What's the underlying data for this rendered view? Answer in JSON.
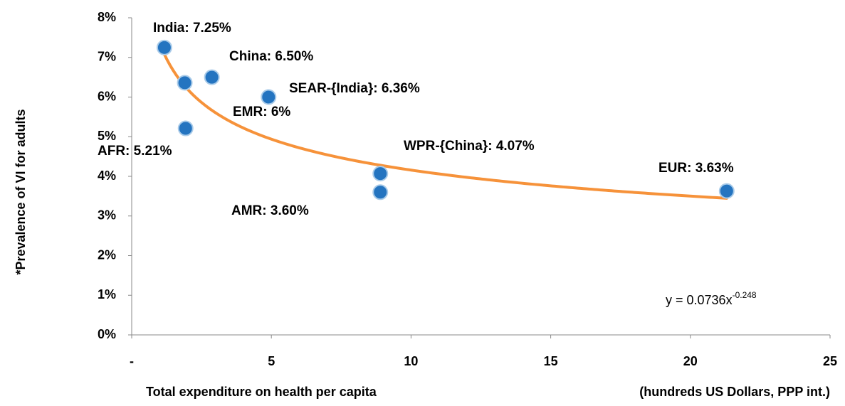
{
  "chart_data": {
    "type": "scatter",
    "ylabel": "*Prevalence of  VI  for adults",
    "xlabel": "Total expenditure on health per capita",
    "xlabel_units": "(hundreds US Dollars, PPP int.)",
    "x": [
      1.17,
      1.9,
      2.87,
      4.9,
      1.93,
      8.9,
      8.9,
      21.3
    ],
    "values": [
      7.25,
      6.36,
      6.5,
      6.0,
      5.21,
      4.07,
      3.6,
      3.63
    ],
    "color": "#2474c0",
    "annotations": [
      {
        "text": "India: 7.25%"
      },
      {
        "text": "China:  6.50%"
      },
      {
        "text": "SEAR-{India}: 6.36%"
      },
      {
        "text": "EMR: 6%"
      },
      {
        "text": "AFR: 5.21%"
      },
      {
        "text": "WPR-{China}: 4.07%"
      },
      {
        "text": "AMR: 3.60%"
      },
      {
        "text": "EUR: 3.63%"
      }
    ],
    "trendline": {
      "type": "power",
      "coefficient": 7.36,
      "exponent": -0.248,
      "color": "#f6923a",
      "equation": "y = 0.0736x",
      "equation_exponent": "-0.248"
    },
    "xlim": [
      0,
      25
    ],
    "xticks": [
      {
        "value": 0,
        "label": "-"
      },
      5,
      10,
      15,
      20,
      25
    ],
    "ylim": [
      0,
      8
    ],
    "yticks": [
      {
        "value": 0,
        "label": "0%"
      },
      {
        "value": 1,
        "label": "1%"
      },
      {
        "value": 2,
        "label": "2%"
      },
      {
        "value": 3,
        "label": "3%"
      },
      {
        "value": 4,
        "label": "4%"
      },
      {
        "value": 5,
        "label": "5%"
      },
      {
        "value": 6,
        "label": "6%"
      },
      {
        "value": 7,
        "label": "7%"
      },
      {
        "value": 8,
        "label": "8%"
      }
    ],
    "grid": false
  }
}
